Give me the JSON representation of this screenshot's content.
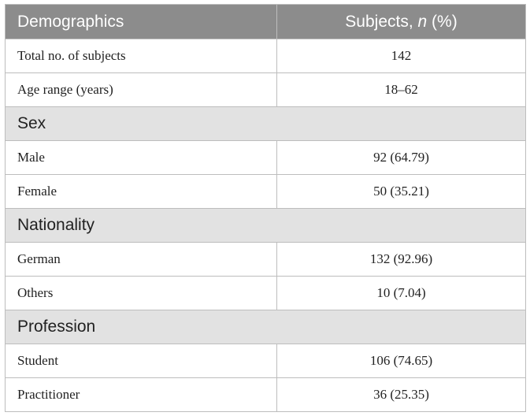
{
  "header": {
    "col1": "Demographics",
    "col2_prefix": "Subjects, ",
    "col2_italic": "n",
    "col2_suffix": " (%)"
  },
  "rows": [
    {
      "label": "Total no. of subjects",
      "value": "142"
    },
    {
      "label": "Age range (years)",
      "value": "18–62"
    }
  ],
  "sections": [
    {
      "title": "Sex",
      "rows": [
        {
          "label": "Male",
          "value": "92 (64.79)"
        },
        {
          "label": "Female",
          "value": "50 (35.21)"
        }
      ]
    },
    {
      "title": "Nationality",
      "rows": [
        {
          "label": "German",
          "value": "132 (92.96)"
        },
        {
          "label": "Others",
          "value": "10 (7.04)"
        }
      ]
    },
    {
      "title": "Profession",
      "rows": [
        {
          "label": "Student",
          "value": "106 (74.65)"
        },
        {
          "label": "Practitioner",
          "value": "36 (25.35)"
        }
      ]
    }
  ]
}
